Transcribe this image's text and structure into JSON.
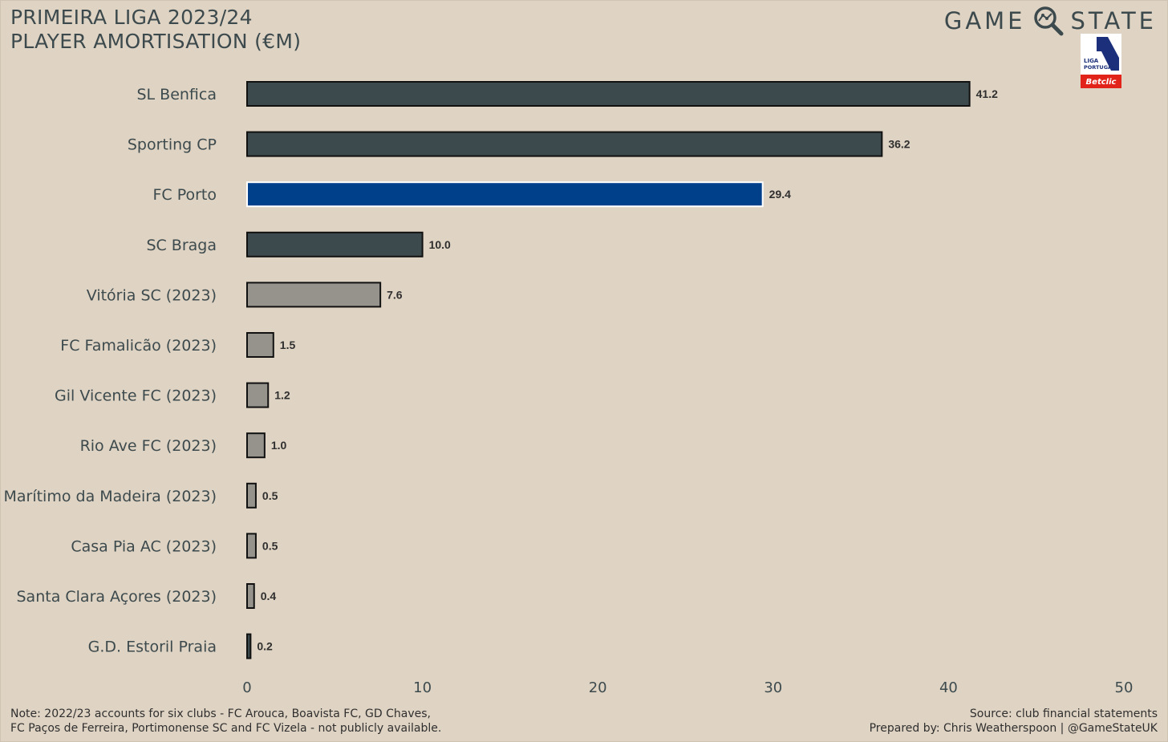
{
  "header": {
    "title_line1": "PRIMEIRA LIGA 2023/24",
    "title_line2": "PLAYER AMORTISATION (€M)"
  },
  "brand": {
    "word1": "GAME",
    "word2": "STATE",
    "logo_icon": "magnifier-icon",
    "league_logo": {
      "line1": "LIGA",
      "line2": "PORTUGAL",
      "sponsor": "Betclic"
    }
  },
  "chart_data": {
    "type": "bar",
    "orientation": "horizontal",
    "title": "PRIMEIRA LIGA 2023/24 PLAYER AMORTISATION (€M)",
    "categories": [
      "SL Benfica",
      "Sporting CP",
      "FC Porto",
      "SC Braga",
      "Vitória SC (2023)",
      "FC Famalicão (2023)",
      "Gil Vicente FC (2023)",
      "Rio Ave FC (2023)",
      "Marítimo da Madeira (2023)",
      "Casa Pia AC (2023)",
      "Santa Clara Açores (2023)",
      "G.D. Estoril Praia"
    ],
    "values": [
      41.2,
      36.2,
      29.4,
      10.0,
      7.6,
      1.5,
      1.2,
      1.0,
      0.5,
      0.5,
      0.4,
      0.2
    ],
    "value_labels": [
      "41.2",
      "36.2",
      "29.4",
      "10.0",
      "7.6",
      "1.5",
      "1.2",
      "1.0",
      "0.5",
      "0.5",
      "0.4",
      "0.2"
    ],
    "bar_colors": [
      "#3d4a4d",
      "#3d4a4d",
      "#003f8a",
      "#3d4a4d",
      "#95938c",
      "#95938c",
      "#95938c",
      "#95938c",
      "#95938c",
      "#95938c",
      "#95938c",
      "#3d4a4d"
    ],
    "bar_outline": [
      "#111111",
      "#111111",
      "#ffffff",
      "#111111",
      "#111111",
      "#111111",
      "#111111",
      "#111111",
      "#111111",
      "#111111",
      "#111111",
      "#111111"
    ],
    "xlim": [
      0,
      50
    ],
    "xticks": [
      0,
      10,
      20,
      30,
      40,
      50
    ],
    "xlabel": "",
    "ylabel": "",
    "grid": false,
    "legend": "none"
  },
  "colors": {
    "background": "#dfd3c3",
    "highlight": "#003f8a",
    "dark_bar": "#3d4a4d",
    "grey_bar": "#95938c",
    "text": "#3d4a4d"
  },
  "footer": {
    "note_line1": "Note: 2022/23 accounts for six clubs - FC Arouca, Boavista FC, GD Chaves,",
    "note_line2": "FC Paços de Ferreira, Portimonense SC and FC Vizela - not publicly available.",
    "source": "Source: club financial statements",
    "credit": "Prepared by: Chris Weatherspoon | @GameStateUK"
  }
}
